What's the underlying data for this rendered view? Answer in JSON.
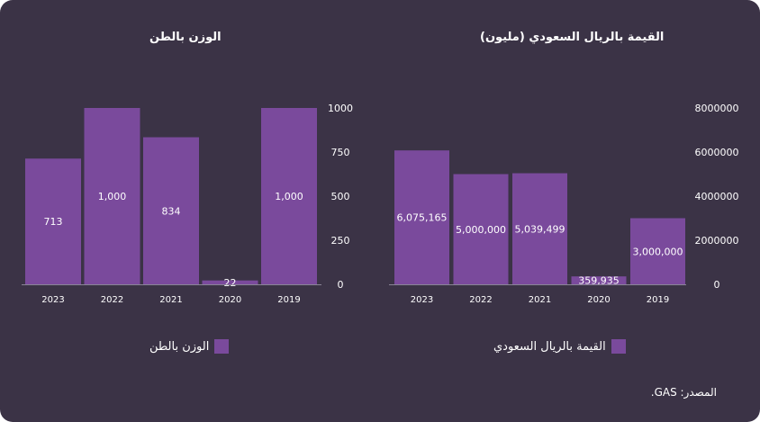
{
  "source": "المصدر: GAS.",
  "colors": {
    "background": "#3b3346",
    "bar": "#7a4a9c",
    "axis": "#8a8496",
    "text": "#ffffff"
  },
  "chart_data": [
    {
      "type": "bar",
      "title": "الوزن بالطن",
      "legend": "الوزن بالطن",
      "categories": [
        "2023",
        "2022",
        "2021",
        "2020",
        "2019"
      ],
      "values": [
        713,
        1000,
        834,
        22,
        1000
      ],
      "value_labels": [
        "713",
        "1,000",
        "834",
        "22",
        "1,000"
      ],
      "yticks": [
        "0",
        "250",
        "500",
        "750",
        "1000"
      ],
      "ylim": [
        0,
        1000
      ],
      "ytick_side": "right",
      "grid": false
    },
    {
      "type": "bar",
      "title": "القيمة بالريال السعودي (مليون)",
      "legend": "القيمة بالريال السعودي",
      "categories": [
        "2023",
        "2022",
        "2021",
        "2020",
        "2019"
      ],
      "values": [
        6075165,
        5000000,
        5039499,
        359935,
        3000000
      ],
      "value_labels": [
        "6,075,165",
        "5,000,000",
        "5,039,499",
        "359,935",
        "3,000,000"
      ],
      "yticks": [
        "0",
        "2000000",
        "4000000",
        "6000000",
        "8000000"
      ],
      "ylim": [
        0,
        8000000
      ],
      "ytick_side": "right",
      "grid": false
    }
  ]
}
